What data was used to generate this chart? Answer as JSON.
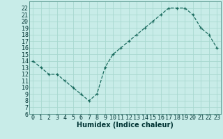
{
  "x": [
    0,
    1,
    2,
    3,
    4,
    5,
    6,
    7,
    8,
    9,
    10,
    11,
    12,
    13,
    14,
    15,
    16,
    17,
    18,
    19,
    20,
    21,
    22,
    23
  ],
  "y": [
    14,
    13,
    12,
    12,
    11,
    10,
    9,
    8,
    9,
    13,
    15,
    16,
    17,
    18,
    19,
    20,
    21,
    22,
    22,
    22,
    21,
    19,
    18,
    16
  ],
  "line_color": "#1a6b5e",
  "marker": "+",
  "bg_color": "#c8ece8",
  "grid_color": "#a8d8d0",
  "xlabel": "Humidex (Indice chaleur)",
  "xlabel_fontsize": 7,
  "tick_label_fontsize": 6,
  "ylim": [
    6,
    23
  ],
  "xlim": [
    -0.5,
    23.5
  ],
  "yticks": [
    6,
    7,
    8,
    9,
    10,
    11,
    12,
    13,
    14,
    15,
    16,
    17,
    18,
    19,
    20,
    21,
    22
  ],
  "xticks": [
    0,
    1,
    2,
    3,
    4,
    5,
    6,
    7,
    8,
    9,
    10,
    11,
    12,
    13,
    14,
    15,
    16,
    17,
    18,
    19,
    20,
    21,
    22,
    23
  ],
  "spine_color": "#4a8a80",
  "text_color": "#003333",
  "markersize": 3.5,
  "linewidth": 0.9
}
